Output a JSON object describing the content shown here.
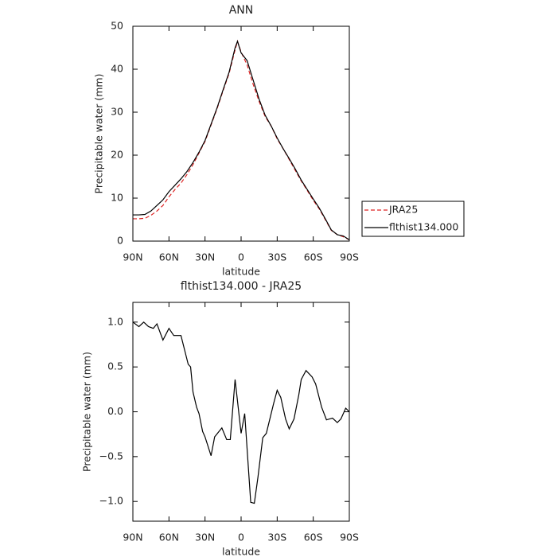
{
  "chart_data": [
    {
      "type": "line",
      "title": "ANN",
      "x_label": "latitude",
      "y_label": "Precipitable water (mm)",
      "x": [
        90,
        85,
        80,
        75,
        70,
        65,
        60,
        55,
        50,
        45,
        40,
        35,
        30,
        25,
        20,
        15,
        10,
        5,
        3,
        0,
        -5,
        -10,
        -15,
        -20,
        -25,
        -30,
        -35,
        -40,
        -45,
        -50,
        -55,
        -60,
        -65,
        -70,
        -75,
        -80,
        -85,
        -90
      ],
      "xlim": [
        90,
        -90
      ],
      "xticks": [
        {
          "value": 90,
          "label": "90N"
        },
        {
          "value": 60,
          "label": "60N"
        },
        {
          "value": 30,
          "label": "30N"
        },
        0,
        {
          "value": -30,
          "label": "30S"
        },
        {
          "value": -60,
          "label": "60S"
        },
        {
          "value": -90,
          "label": "90S"
        }
      ],
      "ylim": [
        0,
        50
      ],
      "yticks": [
        0,
        10,
        20,
        30,
        40,
        50
      ],
      "legend": "outside-right",
      "series": [
        {
          "name": "JRA25",
          "color": "#dd2222",
          "style": "dashed",
          "values": [
            5.2,
            5.2,
            5.3,
            6,
            7,
            8.3,
            10.3,
            12,
            13.5,
            15.5,
            17.8,
            20.5,
            23.2,
            27,
            30.8,
            35,
            39,
            44.5,
            46.5,
            44,
            41,
            36.5,
            32.5,
            29,
            26.8,
            23.8,
            21.5,
            19,
            16.5,
            14,
            11.8,
            9.5,
            7.5,
            5,
            2.5,
            1.5,
            1,
            0.3
          ]
        },
        {
          "name": "flthist134.000",
          "color": "#000000",
          "style": "solid",
          "values": [
            6.1,
            6.1,
            6.2,
            7,
            8.3,
            9.6,
            11.5,
            13,
            14.5,
            16.2,
            18.3,
            20.7,
            23.4,
            27.2,
            31,
            35.2,
            39.3,
            45,
            46.5,
            43.8,
            42,
            37.5,
            33,
            29.3,
            26.8,
            24,
            21.5,
            19.2,
            16.8,
            14.2,
            12,
            9.8,
            7.7,
            5.2,
            2.6,
            1.5,
            1.2,
            0.3
          ]
        }
      ]
    },
    {
      "type": "line",
      "title": "flthist134.000 - JRA25",
      "x_label": "latitude",
      "y_label": "Precipitable water (mm)",
      "x": [
        90,
        85,
        81,
        77,
        73,
        70,
        65,
        60,
        56,
        50,
        44,
        42,
        40,
        37,
        35,
        32,
        30,
        25,
        22,
        16,
        12,
        9,
        5,
        0,
        -3,
        -8,
        -11,
        -14,
        -18,
        -21,
        -27,
        -30,
        -33,
        -37,
        -40,
        -44,
        -48,
        -50,
        -54,
        -59,
        -62,
        -67,
        -71,
        -76,
        -80,
        -83,
        -87,
        -90
      ],
      "xlim": [
        90,
        -90
      ],
      "xticks": [
        {
          "value": 90,
          "label": "90N"
        },
        {
          "value": 60,
          "label": "60N"
        },
        {
          "value": 30,
          "label": "30N"
        },
        0,
        {
          "value": -30,
          "label": "30S"
        },
        {
          "value": -60,
          "label": "60S"
        },
        {
          "value": -90,
          "label": "90S"
        }
      ],
      "ylim": [
        -1.22,
        1.22
      ],
      "yticks": [
        {
          "value": -1,
          "label": "−1.0"
        },
        {
          "value": -0.5,
          "label": "−0.5"
        },
        {
          "value": 0,
          "label": "0.0"
        },
        {
          "value": 0.5,
          "label": "0.5"
        },
        {
          "value": 1,
          "label": "1.0"
        }
      ],
      "series": [
        {
          "color": "#000000",
          "style": "solid",
          "values": [
            1.0,
            0.95,
            1.0,
            0.95,
            0.93,
            0.98,
            0.8,
            0.93,
            0.85,
            0.85,
            0.53,
            0.5,
            0.22,
            0.05,
            -0.02,
            -0.22,
            -0.28,
            -0.49,
            -0.28,
            -0.18,
            -0.31,
            -0.31,
            0.36,
            -0.24,
            -0.02,
            -1.01,
            -1.02,
            -0.73,
            -0.29,
            -0.24,
            0.09,
            0.24,
            0.16,
            -0.08,
            -0.19,
            -0.08,
            0.19,
            0.36,
            0.46,
            0.39,
            0.31,
            0.05,
            -0.09,
            -0.07,
            -0.12,
            -0.08,
            0.04,
            0.0
          ]
        }
      ]
    }
  ]
}
